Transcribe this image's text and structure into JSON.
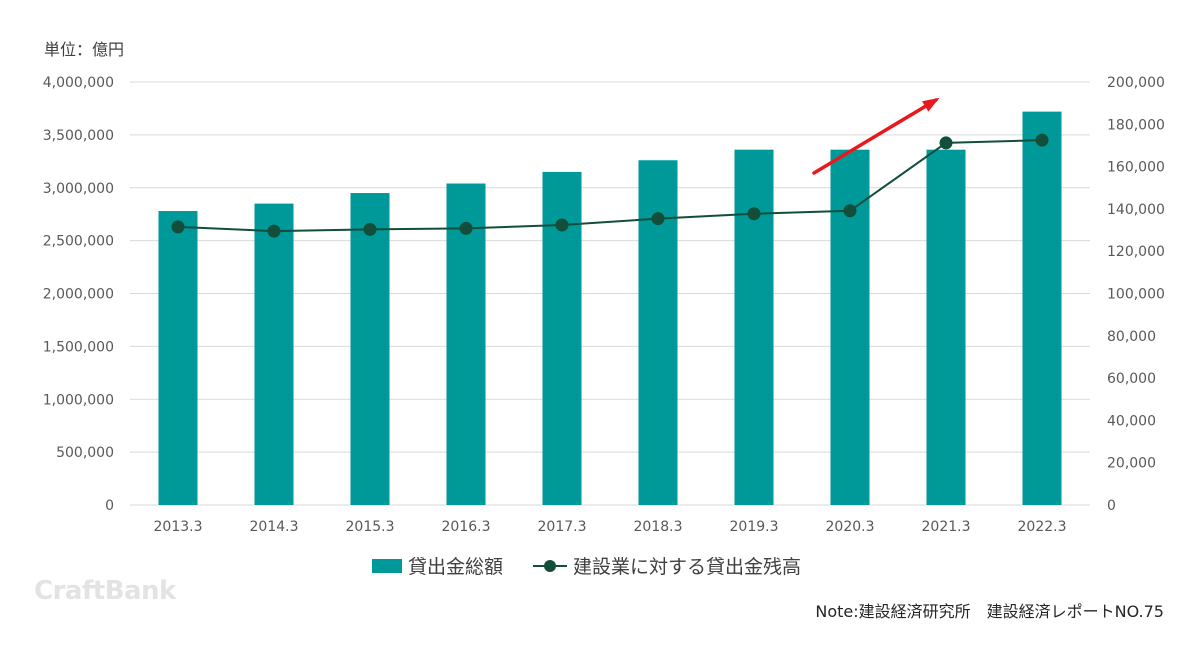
{
  "unit_label": "単位：億円",
  "legend": {
    "bar_label": "貸出金総額",
    "line_label": "建設業に対する貸出金残高"
  },
  "logo_text": "CraftBank",
  "note": "Note:建設経済研究所　建設経済レポートNO.75",
  "colors": {
    "bar": "#009999",
    "line": "#134e3a",
    "arrow": "#e8191d",
    "grid": "#d9d9d9"
  },
  "chart_data": {
    "type": "bar",
    "categories": [
      "2013.3",
      "2014.3",
      "2015.3",
      "2016.3",
      "2017.3",
      "2018.3",
      "2019.3",
      "2020.3",
      "2021.3",
      "2022.3"
    ],
    "series": [
      {
        "name": "貸出金総額",
        "type": "bar",
        "axis": "left",
        "values": [
          2780000,
          2850000,
          2950000,
          3040000,
          3150000,
          3260000,
          3360000,
          3360000,
          3360000,
          3720000
        ]
      },
      {
        "name": "建設業に対する貸出金残高",
        "type": "line",
        "axis": "right",
        "values": [
          131500,
          129500,
          130300,
          130800,
          132400,
          135400,
          137700,
          139100,
          171200,
          172500
        ]
      }
    ],
    "left_axis": {
      "min": 0,
      "max": 4000000,
      "step": 500000,
      "tick_labels": [
        "0",
        "500,000",
        "1,000,000",
        "1,500,000",
        "2,000,000",
        "2,500,000",
        "3,000,000",
        "3,500,000",
        "4,000,000"
      ]
    },
    "right_axis": {
      "min": 0,
      "max": 200000,
      "step": 20000,
      "tick_labels": [
        "0",
        "20,000",
        "40,000",
        "60,000",
        "80,000",
        "100,000",
        "120,000",
        "140,000",
        "160,000",
        "180,000",
        "200,000"
      ]
    },
    "grid": true,
    "legend_position": "bottom",
    "annotation": {
      "type": "arrow",
      "description": "upward trend arrow",
      "from_category": "2020.3",
      "to_category": "2021.3"
    }
  }
}
